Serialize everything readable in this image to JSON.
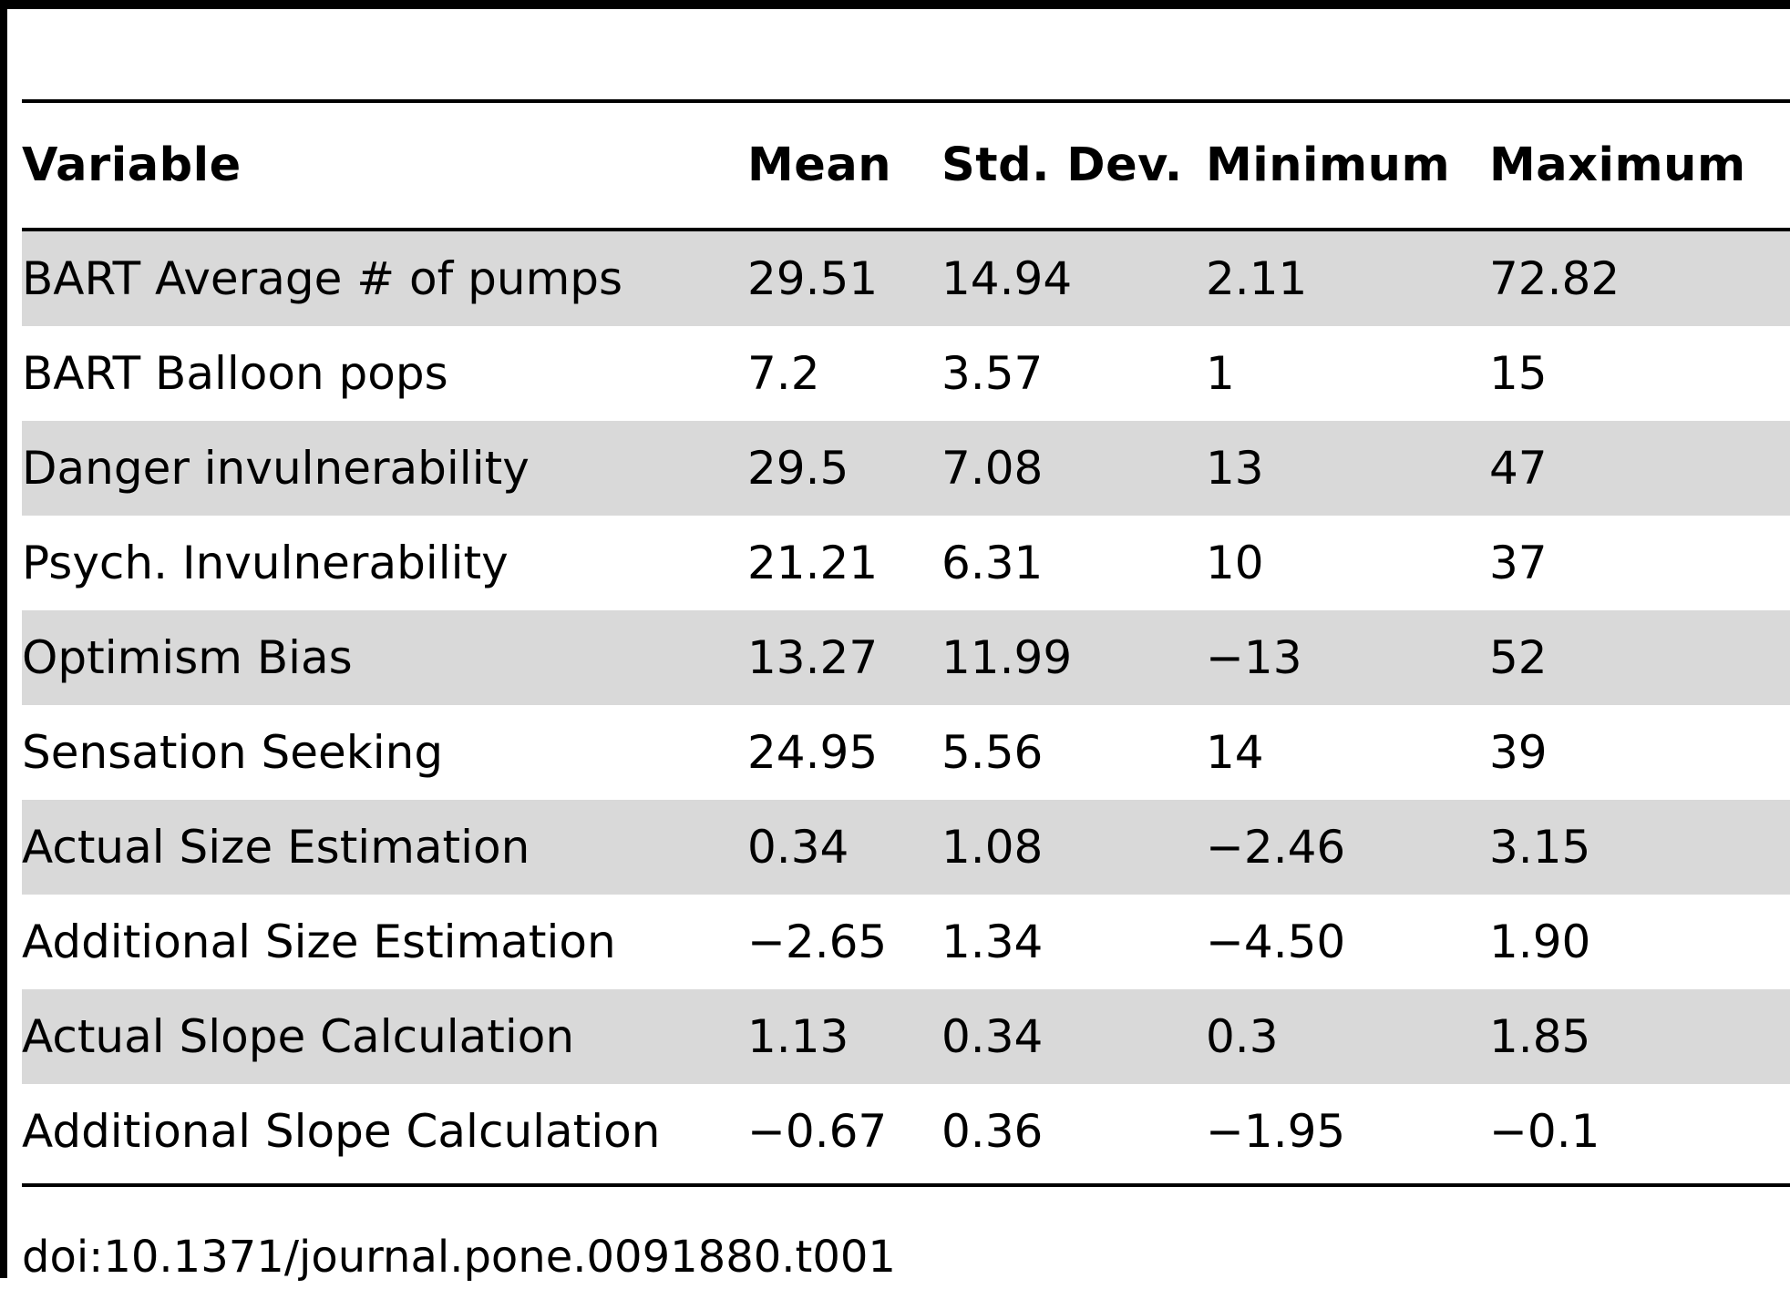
{
  "table": {
    "headers": {
      "variable": "Variable",
      "mean": "Mean",
      "std_dev": "Std. Dev.",
      "minimum": "Minimum",
      "maximum": "Maximum"
    },
    "rows": [
      {
        "variable": "BART Average # of pumps",
        "mean": "29.51",
        "std_dev": "14.94",
        "minimum": "2.11",
        "maximum": "72.82"
      },
      {
        "variable": "BART Balloon pops",
        "mean": "7.2",
        "std_dev": "3.57",
        "minimum": "1",
        "maximum": "15"
      },
      {
        "variable": "Danger invulnerability",
        "mean": "29.5",
        "std_dev": "7.08",
        "minimum": "13",
        "maximum": "47"
      },
      {
        "variable": "Psych. Invulnerability",
        "mean": "21.21",
        "std_dev": "6.31",
        "minimum": "10",
        "maximum": "37"
      },
      {
        "variable": "Optimism Bias",
        "mean": "13.27",
        "std_dev": "11.99",
        "minimum": "−13",
        "maximum": "52"
      },
      {
        "variable": "Sensation Seeking",
        "mean": "24.95",
        "std_dev": "5.56",
        "minimum": "14",
        "maximum": "39"
      },
      {
        "variable": "Actual Size Estimation",
        "mean": "0.34",
        "std_dev": "1.08",
        "minimum": "−2.46",
        "maximum": "3.15"
      },
      {
        "variable": "Additional Size Estimation",
        "mean": "−2.65",
        "std_dev": "1.34",
        "minimum": "−4.50",
        "maximum": "1.90"
      },
      {
        "variable": "Actual Slope Calculation",
        "mean": "1.13",
        "std_dev": "0.34",
        "minimum": "0.3",
        "maximum": "1.85"
      },
      {
        "variable": "Additional Slope Calculation",
        "mean": "−0.67",
        "std_dev": "0.36",
        "minimum": "−1.95",
        "maximum": "−0.1"
      }
    ]
  },
  "doi": "doi:10.1371/journal.pone.0091880.t001"
}
